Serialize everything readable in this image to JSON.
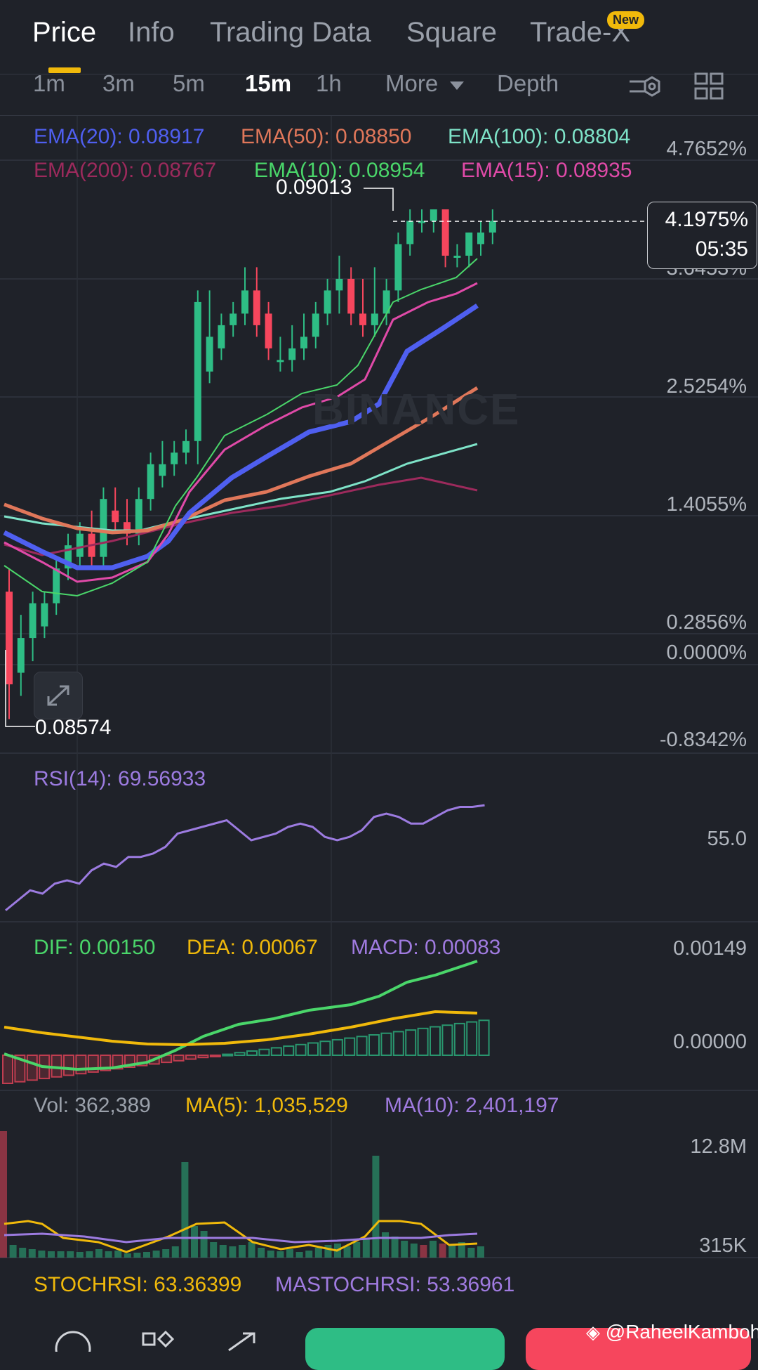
{
  "tabs": [
    {
      "label": "Price",
      "active": true
    },
    {
      "label": "Info"
    },
    {
      "label": "Trading Data"
    },
    {
      "label": "Square"
    },
    {
      "label": "Trade-X"
    }
  ],
  "new_badge": "New",
  "timeframes": {
    "items": [
      "1m",
      "3m",
      "5m",
      "15m",
      "1h"
    ],
    "active": "15m",
    "more": "More",
    "depth": "Depth"
  },
  "ema": {
    "ema20": "EMA(20): 0.08917",
    "ema50": "EMA(50): 0.08850",
    "ema100": "EMA(100): 0.08804",
    "ema200": "EMA(200): 0.08767",
    "ema10": "EMA(10): 0.08954",
    "ema15": "EMA(15): 0.08935"
  },
  "price_axis": {
    "ticks": [
      "4.7652%",
      "3.6453%",
      "2.5254%",
      "1.4055%",
      "0.2856%",
      "0.0000%",
      "-0.8342%"
    ],
    "high_label": "0.09013",
    "low_label": "0.08574",
    "current_pct": "4.1975%",
    "countdown": "05:35"
  },
  "watermark": "BINANCE",
  "rsi": {
    "label": "RSI(14): 69.56933",
    "tick": "55.0",
    "values": [
      38,
      41,
      44,
      43,
      46,
      47,
      46,
      50,
      52,
      51,
      54,
      54,
      55,
      57,
      61,
      62,
      63,
      64,
      65,
      62,
      59,
      60,
      61,
      63,
      64,
      63,
      60,
      59,
      60,
      62,
      66,
      67,
      66,
      64,
      64,
      66,
      68,
      69,
      69,
      69.5
    ]
  },
  "macd": {
    "dif_label": "DIF: 0.00150",
    "dea_label": "DEA: 0.00067",
    "macd_label": "MACD: 0.00083",
    "ticks": [
      "0.00149",
      "0.00000"
    ]
  },
  "volume": {
    "vol_label": "Vol: 362,389",
    "ma5_label": "MA(5): 1,035,529",
    "ma10_label": "MA(10): 2,401,197",
    "ticks": [
      "12.8M",
      "315K"
    ]
  },
  "stochrsi": {
    "stoch_label": "STOCHRSI: 63.36399",
    "ma_label": "MASTOCHRSI: 53.36961"
  },
  "colors": {
    "up": "#2ebd85",
    "down": "#f6465d",
    "ema20": "#4f5ff0",
    "ema50": "#e0775a",
    "ema100": "#7ee3c8",
    "ema200": "#9c2a5c",
    "ema10": "#4ad66a",
    "ema15": "#e04aa8",
    "rsi": "#9c7be0",
    "dif": "#4ad66a",
    "dea": "#f0b90b",
    "macd_label": "#a07be0"
  },
  "credit": "@RaheelKamboh",
  "chart_data": {
    "type": "candlestick",
    "candles": [
      [
        0.0868,
        0.086,
        0.087,
        0.0857
      ],
      [
        0.0861,
        0.0864,
        0.0866,
        0.0859
      ],
      [
        0.0864,
        0.0867,
        0.0868,
        0.0862
      ],
      [
        0.0865,
        0.0867,
        0.0868,
        0.0864
      ],
      [
        0.0867,
        0.087,
        0.0871,
        0.0866
      ],
      [
        0.087,
        0.0872,
        0.0873,
        0.0869
      ],
      [
        0.0871,
        0.0873,
        0.0874,
        0.087
      ],
      [
        0.0873,
        0.0871,
        0.0875,
        0.087
      ],
      [
        0.0871,
        0.0876,
        0.0877,
        0.087
      ],
      [
        0.0875,
        0.0874,
        0.0877,
        0.0873
      ],
      [
        0.0874,
        0.0873,
        0.0876,
        0.0872
      ],
      [
        0.0873,
        0.0876,
        0.0877,
        0.0872
      ],
      [
        0.0876,
        0.0879,
        0.088,
        0.0875
      ],
      [
        0.0878,
        0.0879,
        0.0881,
        0.0877
      ],
      [
        0.0879,
        0.088,
        0.0881,
        0.0878
      ],
      [
        0.088,
        0.0881,
        0.0882,
        0.0879
      ],
      [
        0.0881,
        0.0893,
        0.0894,
        0.0879
      ],
      [
        0.0887,
        0.089,
        0.0894,
        0.0886
      ],
      [
        0.0889,
        0.0891,
        0.0892,
        0.0888
      ],
      [
        0.0891,
        0.0892,
        0.0893,
        0.089
      ],
      [
        0.0892,
        0.0894,
        0.0896,
        0.0891
      ],
      [
        0.0894,
        0.0891,
        0.0896,
        0.089
      ],
      [
        0.0892,
        0.0889,
        0.0893,
        0.0888
      ],
      [
        0.0888,
        0.0888,
        0.089,
        0.0887
      ],
      [
        0.0888,
        0.0889,
        0.0891,
        0.0887
      ],
      [
        0.0889,
        0.089,
        0.0892,
        0.0888
      ],
      [
        0.089,
        0.0892,
        0.0893,
        0.0889
      ],
      [
        0.0892,
        0.0894,
        0.0895,
        0.0891
      ],
      [
        0.0894,
        0.0895,
        0.0897,
        0.0892
      ],
      [
        0.0895,
        0.0892,
        0.0896,
        0.0891
      ],
      [
        0.0892,
        0.0891,
        0.0895,
        0.089
      ],
      [
        0.0891,
        0.0892,
        0.0896,
        0.089
      ],
      [
        0.0892,
        0.0894,
        0.0895,
        0.0891
      ],
      [
        0.0894,
        0.0898,
        0.0899,
        0.0893
      ],
      [
        0.0898,
        0.09,
        0.0901,
        0.0897
      ],
      [
        0.09,
        0.09,
        0.0901,
        0.0899
      ],
      [
        0.09,
        0.0901,
        0.0901,
        0.0899
      ],
      [
        0.0901,
        0.0897,
        0.0901,
        0.0896
      ],
      [
        0.0897,
        0.0897,
        0.0898,
        0.0896
      ],
      [
        0.0897,
        0.0899,
        0.0899,
        0.0896
      ],
      [
        0.0898,
        0.0899,
        0.09,
        0.0897
      ],
      [
        0.0899,
        0.09,
        0.0901,
        0.0898
      ]
    ],
    "price_range": [
      0.0856,
      0.0903
    ]
  }
}
